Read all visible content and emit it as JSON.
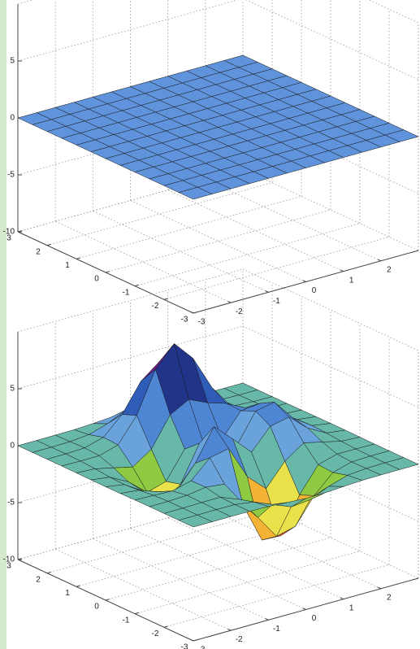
{
  "chart_data": [
    {
      "type": "surface",
      "x": [
        -3,
        -2.5,
        -2,
        -1.5,
        -1,
        -0.5,
        0,
        0.5,
        1,
        1.5,
        2,
        2.5,
        3
      ],
      "y": [
        -3,
        -2.5,
        -2,
        -1.5,
        -1,
        -0.5,
        0,
        0.5,
        1,
        1.5,
        2,
        2.5,
        3
      ],
      "z": [
        [
          0,
          0,
          0,
          0,
          0,
          0,
          0,
          0,
          0,
          0,
          0,
          0,
          0
        ],
        [
          0,
          0,
          0,
          0,
          0,
          0,
          0,
          0,
          0,
          0,
          0,
          0,
          0
        ],
        [
          0,
          0,
          0,
          0,
          0,
          0,
          0,
          0,
          0,
          0,
          0,
          0,
          0
        ],
        [
          0,
          0,
          0,
          0,
          0,
          0,
          0,
          0,
          0,
          0,
          0,
          0,
          0
        ],
        [
          0,
          0,
          0,
          0,
          0,
          0,
          0,
          0,
          0,
          0,
          0,
          0,
          0
        ],
        [
          0,
          0,
          0,
          0,
          0,
          0,
          0,
          0,
          0,
          0,
          0,
          0,
          0
        ],
        [
          0,
          0,
          0,
          0,
          0,
          0,
          0,
          0,
          0,
          0,
          0,
          0,
          0
        ],
        [
          0,
          0,
          0,
          0,
          0,
          0,
          0,
          0,
          0,
          0,
          0,
          0,
          0
        ],
        [
          0,
          0,
          0,
          0,
          0,
          0,
          0,
          0,
          0,
          0,
          0,
          0,
          0
        ],
        [
          0,
          0,
          0,
          0,
          0,
          0,
          0,
          0,
          0,
          0,
          0,
          0,
          0
        ],
        [
          0,
          0,
          0,
          0,
          0,
          0,
          0,
          0,
          0,
          0,
          0,
          0,
          0
        ],
        [
          0,
          0,
          0,
          0,
          0,
          0,
          0,
          0,
          0,
          0,
          0,
          0,
          0
        ],
        [
          0,
          0,
          0,
          0,
          0,
          0,
          0,
          0,
          0,
          0,
          0,
          0,
          0
        ]
      ],
      "color": "#5f93dc",
      "xlim": [
        -3,
        3
      ],
      "ylim": [
        -3,
        3
      ],
      "zlim": [
        -10,
        10
      ],
      "xticks": [
        -3,
        -2,
        -1,
        0,
        1,
        2
      ],
      "yticks": [
        -3,
        -2,
        -1,
        0,
        1,
        2,
        3
      ],
      "zticks": [
        -10,
        -5,
        0,
        5
      ],
      "grid": true
    },
    {
      "type": "surface",
      "x": [
        -3,
        -2.5,
        -2,
        -1.5,
        -1,
        -0.5,
        0,
        0.5,
        1,
        1.5,
        2,
        2.5,
        3
      ],
      "y": [
        -3,
        -2.5,
        -2,
        -1.5,
        -1,
        -0.5,
        0,
        0.5,
        1,
        1.5,
        2,
        2.5,
        3
      ],
      "z": [
        [
          0,
          0,
          0,
          0,
          -0.03,
          -0.14,
          -0.24,
          -0.22,
          -0.11,
          -0.03,
          -0.01,
          0,
          0
        ],
        [
          0,
          0,
          0.02,
          0,
          -0.23,
          -0.91,
          -1.57,
          -1.41,
          -0.69,
          -0.18,
          -0.03,
          0,
          0
        ],
        [
          0,
          0.01,
          0.05,
          0.05,
          -0.59,
          -2.64,
          -4.75,
          -4.34,
          -2.1,
          -0.53,
          -0.06,
          0,
          0
        ],
        [
          0,
          0.01,
          0.08,
          0.33,
          0.15,
          -2.19,
          -5.68,
          -5.76,
          -2.64,
          -0.44,
          0.04,
          0.03,
          0
        ],
        [
          -0.01,
          -0.06,
          -0.13,
          0.3,
          1.86,
          2.22,
          -0.72,
          -2.22,
          -0.27,
          0.88,
          0.5,
          0.11,
          0.01
        ],
        [
          -0.03,
          -0.2,
          -0.8,
          -1.21,
          0.8,
          3.55,
          2,
          0.39,
          2.2,
          2.56,
          1.12,
          0.24,
          0.03
        ],
        [
          -0.04,
          -0.3,
          -1.33,
          -2.77,
          -1.65,
          1.48,
          0.98,
          0.38,
          2.94,
          3.27,
          1.41,
          0.3,
          0.03
        ],
        [
          -0.03,
          -0.25,
          -1.12,
          -2.49,
          -2,
          0.39,
          0.46,
          0.38,
          2.38,
          2.56,
          1.09,
          0.23,
          0.03
        ],
        [
          -0.01,
          -0.11,
          -0.48,
          -0.87,
          0.23,
          2.8,
          3.69,
          2.94,
          2.43,
          1.58,
          0.58,
          0.12,
          0.01
        ],
        [
          0,
          -0.02,
          -0.01,
          0.48,
          2.61,
          6.2,
          8,
          6.25,
          3.25,
          1.19,
          0.29,
          0.05,
          0
        ],
        [
          0,
          0.01,
          0.08,
          0.55,
          2.1,
          4.55,
          5.85,
          4.57,
          2.21,
          0.68,
          0.13,
          0.02,
          0
        ],
        [
          0,
          0,
          0.03,
          0.19,
          0.69,
          1.47,
          1.89,
          1.47,
          0.7,
          0.21,
          0.04,
          0,
          0
        ],
        [
          0,
          0,
          0.01,
          0.03,
          0.11,
          0.23,
          0.3,
          0.23,
          0.11,
          0.03,
          0.01,
          0,
          0
        ]
      ],
      "colormap": [
        "#e8542c",
        "#f5b335",
        "#e9e24b",
        "#8fca43",
        "#67b8a8",
        "#6aa3dc",
        "#4f86d4",
        "#2f5cb6",
        "#22338a",
        "#6b1f84",
        "#cc2060"
      ],
      "xlim": [
        -3,
        3
      ],
      "ylim": [
        -3,
        3
      ],
      "zlim": [
        -10,
        10
      ],
      "xticks": [
        -3,
        -2,
        -1,
        0,
        1,
        2
      ],
      "yticks": [
        -3,
        -2,
        -1,
        0,
        1,
        2,
        3
      ],
      "zticks": [
        -10,
        -5,
        0,
        5
      ],
      "grid": true
    }
  ]
}
